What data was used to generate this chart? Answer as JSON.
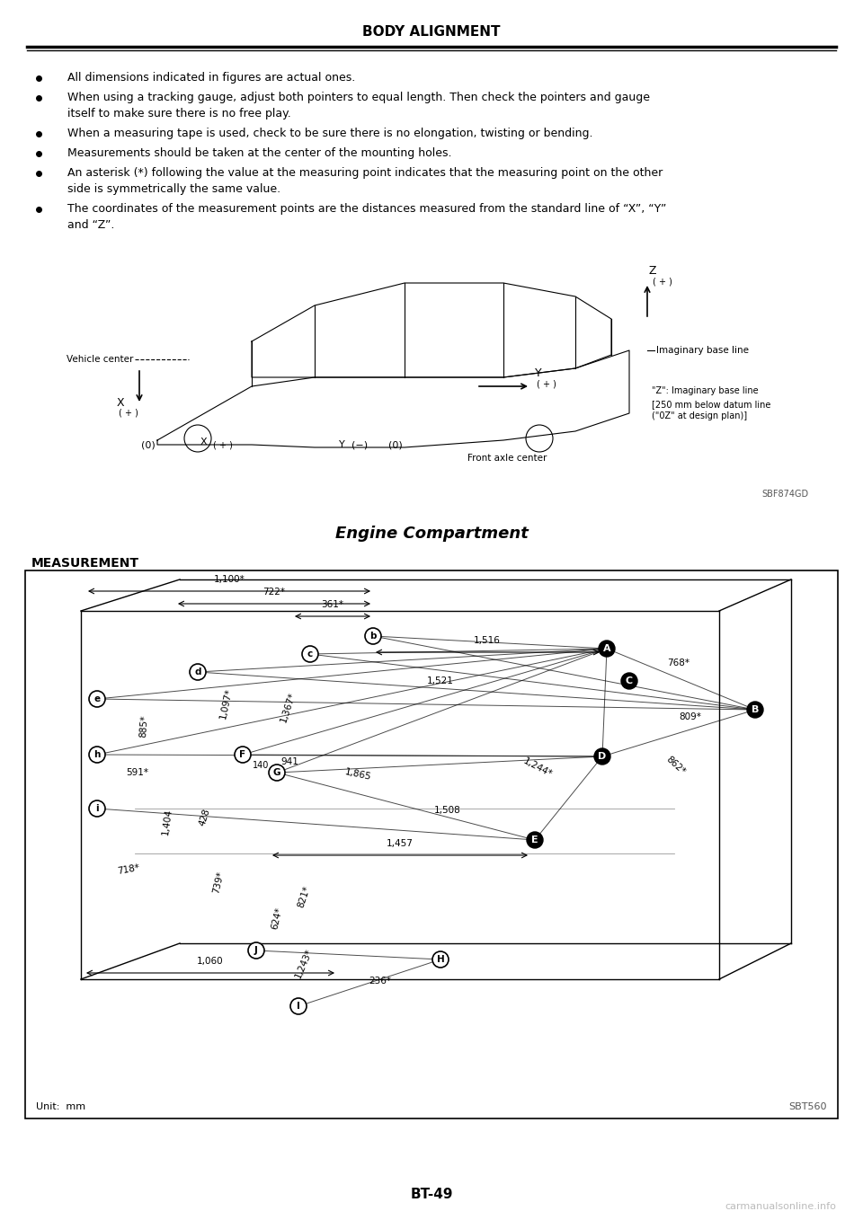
{
  "title": "BODY ALIGNMENT",
  "page_number": "BT-49",
  "section_title": "Engine Compartment",
  "measurement_label": "MEASUREMENT",
  "unit_label": "Unit:  mm",
  "image_ref1": "SBF874GD",
  "image_ref2": "SBT560",
  "watermark": "carmanualsonline.info",
  "bullet_points": [
    "All dimensions indicated in figures are actual ones.",
    "When using a tracking gauge, adjust both pointers to equal length. Then check the pointers and gauge\nitself to make sure there is no free play.",
    "When a measuring tape is used, check to be sure there is no elongation, twisting or bending.",
    "Measurements should be taken at the center of the mounting holes.",
    "An asterisk (*) following the value at the measuring point indicates that the measuring point on the other\nside is symmetrically the same value.",
    "The coordinates of the measurement points are the distances measured from the standard line of “X”, “Y”\nand “Z”."
  ],
  "bg_color": "#ffffff",
  "text_color": "#000000",
  "title_fontsize": 11,
  "body_fontsize": 9,
  "page_num_fontsize": 11
}
